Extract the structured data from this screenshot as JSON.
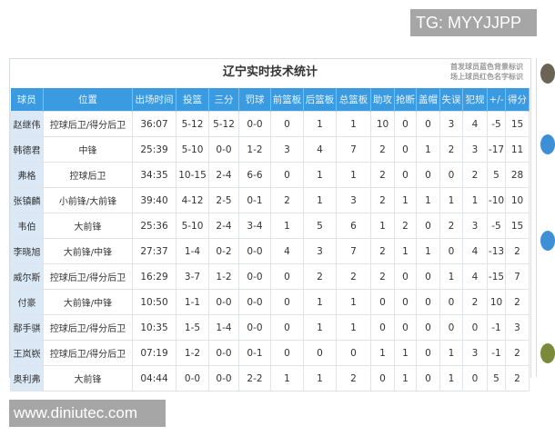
{
  "overlay_tag": "TG: MYYJJPP",
  "watermark": "www.diniutec.com",
  "table": {
    "title": "辽宁实时技术统计",
    "notes": [
      "首发球员蓝色背景标识",
      "场上球员红色名字标识"
    ],
    "header_color": "#3b9be0",
    "starter_color": "#dbe8f6",
    "columns": [
      "球员",
      "位置",
      "出场时间",
      "投篮",
      "三分",
      "罚球",
      "前篮板",
      "后篮板",
      "总篮板",
      "助攻",
      "抢断",
      "盖帽",
      "失误",
      "犯规",
      "+/-",
      "得分"
    ],
    "rows": [
      [
        "赵继伟",
        "控球后卫/得分后卫",
        "36:07",
        "5-12",
        "5-12",
        "0-0",
        "0",
        "1",
        "1",
        "10",
        "0",
        "0",
        "3",
        "4",
        "-5",
        "15"
      ],
      [
        "韩德君",
        "中锋",
        "25:39",
        "5-10",
        "0-0",
        "1-2",
        "3",
        "4",
        "7",
        "2",
        "0",
        "1",
        "2",
        "3",
        "-17",
        "11"
      ],
      [
        "弗格",
        "控球后卫",
        "34:35",
        "10-15",
        "2-4",
        "6-6",
        "0",
        "1",
        "1",
        "2",
        "0",
        "0",
        "0",
        "2",
        "5",
        "28"
      ],
      [
        "张镇麟",
        "小前锋/大前锋",
        "39:40",
        "4-12",
        "2-5",
        "0-1",
        "2",
        "1",
        "3",
        "2",
        "1",
        "1",
        "1",
        "1",
        "-10",
        "10"
      ],
      [
        "韦伯",
        "大前锋",
        "25:36",
        "5-10",
        "2-4",
        "3-4",
        "1",
        "5",
        "6",
        "1",
        "2",
        "0",
        "2",
        "3",
        "-5",
        "15"
      ],
      [
        "李晓旭",
        "大前锋/中锋",
        "27:37",
        "1-4",
        "0-2",
        "0-0",
        "4",
        "3",
        "7",
        "2",
        "1",
        "1",
        "0",
        "4",
        "-13",
        "2"
      ],
      [
        "威尔斯",
        "控球后卫/得分后卫",
        "16:29",
        "3-7",
        "1-2",
        "0-0",
        "0",
        "2",
        "2",
        "2",
        "0",
        "0",
        "1",
        "4",
        "-15",
        "7"
      ],
      [
        "付豪",
        "大前锋/中锋",
        "10:50",
        "1-1",
        "0-0",
        "0-0",
        "0",
        "1",
        "1",
        "0",
        "0",
        "0",
        "0",
        "2",
        "10",
        "2"
      ],
      [
        "鄢手骐",
        "控球后卫/得分后卫",
        "10:35",
        "1-5",
        "1-4",
        "0-0",
        "0",
        "1",
        "1",
        "0",
        "0",
        "0",
        "0",
        "0",
        "-1",
        "3"
      ],
      [
        "王岚嵚",
        "控球后卫/得分后卫",
        "07:19",
        "1-2",
        "0-0",
        "0-1",
        "0",
        "0",
        "0",
        "1",
        "1",
        "0",
        "1",
        "3",
        "-1",
        "2"
      ],
      [
        "奥利弗",
        "大前锋",
        "04:44",
        "0-0",
        "0-0",
        "2-2",
        "1",
        "1",
        "2",
        "0",
        "1",
        "0",
        "1",
        "0",
        "5",
        "2"
      ]
    ]
  }
}
